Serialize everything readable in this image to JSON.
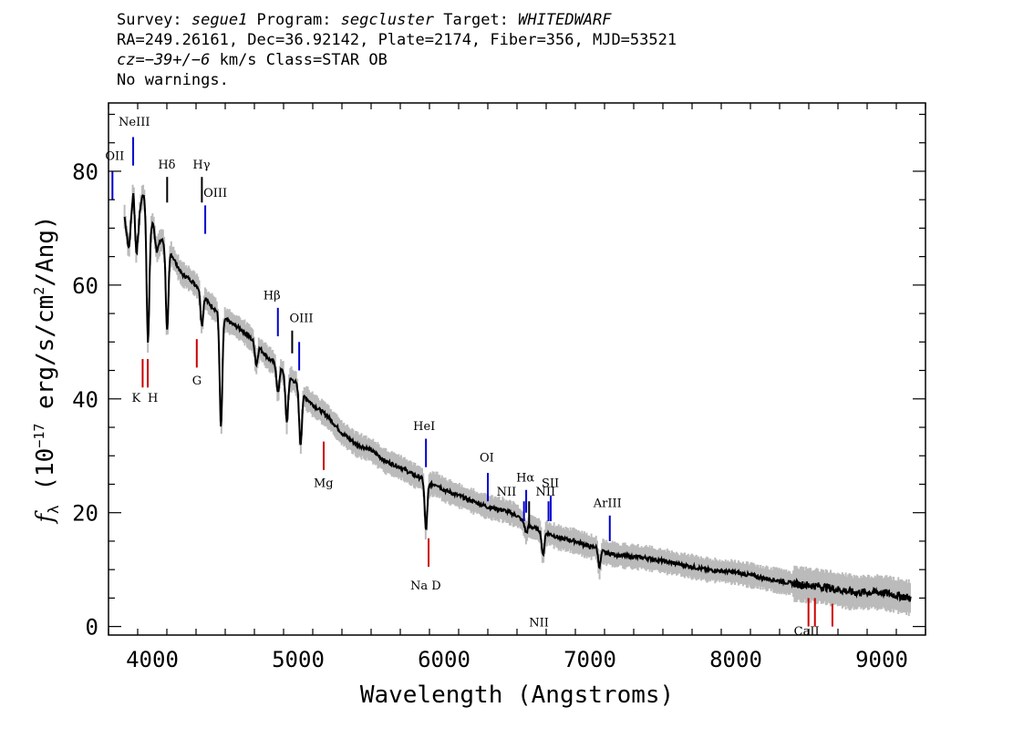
{
  "header": {
    "line1": {
      "survey_label": "Survey: ",
      "survey": "segue1",
      "program_label": " Program: ",
      "program": "segcluster",
      "target_label": " Target: ",
      "target": "WHITEDWARF"
    },
    "line2": "RA=249.26161, Dec=36.92142, Plate=2174, Fiber=356, MJD=53521",
    "line3": {
      "cz": "cz=−39+/−6",
      "rest": " km/s Class=STAR OB"
    },
    "line4": "No warnings."
  },
  "chart_data": {
    "type": "line",
    "xlabel": "Wavelength (Angstroms)",
    "ylabel_parts": {
      "f": "f",
      "sub": "λ",
      "open": " (10",
      "exp": "−17",
      "mid": " erg/s/cm",
      "exp2": "2",
      "close": "/Ang)"
    },
    "xlim": [
      3700,
      9300
    ],
    "ylim": [
      -1.5,
      92
    ],
    "x_ticks": [
      4000,
      5000,
      6000,
      7000,
      8000,
      9000
    ],
    "y_ticks": [
      0,
      20,
      40,
      60,
      80
    ],
    "x_tick_labels": [
      "4000",
      "5000",
      "6000",
      "7000",
      "8000",
      "9000"
    ],
    "y_tick_labels": [
      "0",
      "20",
      "40",
      "60",
      "80"
    ],
    "series": [
      {
        "color": "#000000",
        "noise_color": "#bbbbbb",
        "x": [
          3810,
          3840,
          3870,
          3885,
          3895,
          3905,
          3920,
          3935,
          3955,
          3970,
          3985,
          4005,
          4030,
          4060,
          4100,
          4140,
          4200,
          4260,
          4300,
          4340,
          4380,
          4420,
          4460,
          4500,
          4560,
          4620,
          4700,
          4800,
          4860,
          4920,
          4980,
          5020,
          5100,
          5200,
          5300,
          5400,
          5500,
          5600,
          5700,
          5800,
          5860,
          5880,
          5900,
          5950,
          6000,
          6100,
          6200,
          6300,
          6400,
          6500,
          6560,
          6600,
          6650,
          6680,
          6700,
          6750,
          6800,
          6900,
          7000,
          7060,
          7080,
          7100,
          7200,
          7400,
          7600,
          7800,
          8000,
          8200,
          8400,
          8600,
          8800,
          9000,
          9100,
          9200
        ],
        "y": [
          72,
          66,
          77,
          75,
          73,
          71,
          74,
          76,
          75,
          72,
          70,
          71,
          66,
          68,
          67,
          65,
          62,
          61,
          60,
          59,
          57,
          56,
          55,
          54,
          53,
          52,
          50,
          47,
          46,
          44,
          43,
          41,
          39,
          37,
          34,
          32,
          31,
          29,
          28,
          26.5,
          26,
          25.5,
          25,
          25,
          24,
          23,
          22,
          21,
          20.5,
          19.5,
          18,
          17.5,
          17,
          17,
          16.5,
          16,
          15.5,
          15,
          14,
          14,
          13.5,
          13,
          12.5,
          12,
          11,
          10,
          9.5,
          8.5,
          7.5,
          7,
          6,
          6,
          5.5,
          5
        ],
        "absorption": [
          {
            "x": 3890,
            "y": 66
          },
          {
            "x": 3970,
            "y": 50
          },
          {
            "x": 4102,
            "y": 52
          },
          {
            "x": 4340,
            "y": 53
          },
          {
            "x": 4471,
            "y": 35
          },
          {
            "x": 4713,
            "y": 46
          },
          {
            "x": 4861,
            "y": 41
          },
          {
            "x": 4922,
            "y": 36
          },
          {
            "x": 5016,
            "y": 32
          },
          {
            "x": 5876,
            "y": 17
          },
          {
            "x": 6563,
            "y": 16.5
          },
          {
            "x": 6678,
            "y": 12.5
          },
          {
            "x": 7065,
            "y": 10.5
          }
        ]
      }
    ],
    "line_markers": [
      {
        "label": "OII",
        "x": 3727,
        "y1": 75,
        "y2": 80,
        "color": "#0000cc",
        "label_y": 82,
        "label_dx": -8
      },
      {
        "label": "NeIII",
        "x": 3869,
        "y1": 81,
        "y2": 86,
        "color": "#0000cc",
        "label_y": 88,
        "label_dx": -16
      },
      {
        "label": "Hδ",
        "x": 4102,
        "y1": 74.5,
        "y2": 79,
        "color": "#000000",
        "label_y": 80.5,
        "label_dx": -10
      },
      {
        "label": "Hγ",
        "x": 4340,
        "y1": 74.5,
        "y2": 79,
        "color": "#000000",
        "label_y": 80.5,
        "label_dx": -10
      },
      {
        "label": "OIII",
        "x": 4363,
        "y1": 69,
        "y2": 74,
        "color": "#0000cc",
        "label_y": 75.5,
        "label_dx": -2
      },
      {
        "label": "Hβ",
        "x": 4861,
        "y1": 51,
        "y2": 56,
        "color": "#0000cc",
        "label_y": 57.5,
        "label_dx": -16
      },
      {
        "label": "OIII",
        "x": 4959,
        "y1": 48,
        "y2": 52,
        "color": "#000000",
        "label_y": 53.5,
        "label_dx": -3
      },
      {
        "label": "",
        "x": 5007,
        "y1": 45,
        "y2": 50,
        "color": "#0000cc",
        "label_y": 0,
        "label_dx": 0
      },
      {
        "label": "HeI",
        "x": 5876,
        "y1": 28,
        "y2": 33,
        "color": "#0000cc",
        "label_y": 34.5,
        "label_dx": -14
      },
      {
        "label": "OI",
        "x": 6300,
        "y1": 22,
        "y2": 27,
        "color": "#0000cc",
        "label_y": 29,
        "label_dx": -9
      },
      {
        "label": "NII",
        "x": 6548,
        "y1": 18.5,
        "y2": 22,
        "color": "#0000cc",
        "label_y": 23,
        "label_dx": -30
      },
      {
        "label": "Hα",
        "x": 6563,
        "y1": 20,
        "y2": 24,
        "color": "#0000cc",
        "label_y": 25.5,
        "label_dx": -11
      },
      {
        "label": "NII",
        "x": 6583,
        "y1": 17.5,
        "y2": 22,
        "color": "#000000",
        "label_y": 0,
        "label_dx": 0
      },
      {
        "label": "NII",
        "x": 6716,
        "y1": 18.5,
        "y2": 22,
        "color": "#0000cc",
        "label_y": 23,
        "label_dx": -14
      },
      {
        "label": "SII",
        "x": 6731,
        "y1": 18.5,
        "y2": 23,
        "color": "#0000cc",
        "label_y": 24.5,
        "label_dx": -10
      },
      {
        "label": "ArIII",
        "x": 7136,
        "y1": 15,
        "y2": 19.5,
        "color": "#0000cc",
        "label_y": 21,
        "label_dx": -18
      },
      {
        "label": "K",
        "x": 3934,
        "y1": 42,
        "y2": 47,
        "color": "#cc0000",
        "label_y": 39.5,
        "label_dx": -12
      },
      {
        "label": "H",
        "x": 3969,
        "y1": 42,
        "y2": 47,
        "color": "#cc0000",
        "label_y": 39.5,
        "label_dx": 0
      },
      {
        "label": "G",
        "x": 4305,
        "y1": 45.5,
        "y2": 50.5,
        "color": "#cc0000",
        "label_y": 42.5,
        "label_dx": -5
      },
      {
        "label": "Mg",
        "x": 5175,
        "y1": 27.5,
        "y2": 32.5,
        "color": "#cc0000",
        "label_y": 24.5,
        "label_dx": -11
      },
      {
        "label": "Na  D",
        "x": 5894,
        "y1": 10.5,
        "y2": 15.5,
        "color": "#cc0000",
        "label_y": 6.5,
        "label_dx": -20
      },
      {
        "label": "CaII",
        "x": 8498,
        "y1": 0,
        "y2": 5,
        "color": "#cc0000",
        "label_y": -1.5,
        "label_dx": -16
      },
      {
        "label": "",
        "x": 8542,
        "y1": 0,
        "y2": 5,
        "color": "#cc0000",
        "label_y": 0,
        "label_dx": 0
      },
      {
        "label": "",
        "x": 8662,
        "y1": 0,
        "y2": 4,
        "color": "#cc0000",
        "label_y": 0,
        "label_dx": 0
      }
    ]
  }
}
